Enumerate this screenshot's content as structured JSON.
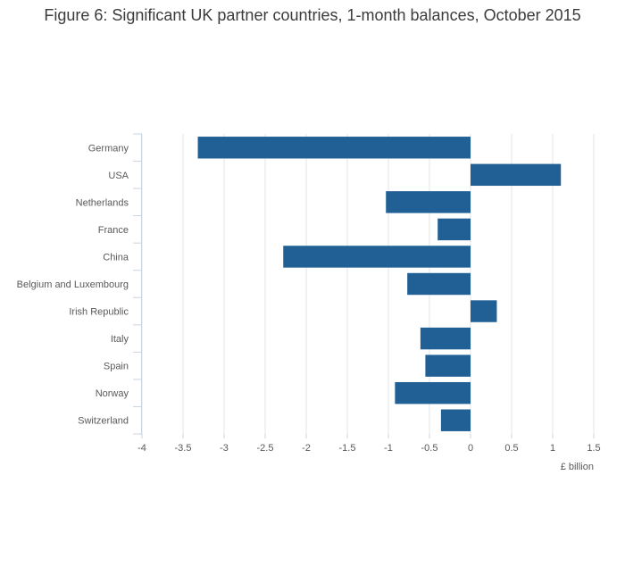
{
  "chart_data": {
    "type": "bar",
    "orientation": "horizontal",
    "title": "Figure 6: Significant UK partner countries, 1-month balances, October 2015",
    "xlabel": "£ billion",
    "ylabel": "",
    "categories": [
      "Germany",
      "USA",
      "Netherlands",
      "France",
      "China",
      "Belgium and Luxembourg",
      "Irish Republic",
      "Italy",
      "Spain",
      "Norway",
      "Switzerland"
    ],
    "values": [
      -3.32,
      1.1,
      -1.03,
      -0.4,
      -2.28,
      -0.77,
      0.32,
      -0.61,
      -0.55,
      -0.92,
      -0.36
    ],
    "xlim": [
      -4,
      1.5
    ],
    "xticks": [
      -4,
      -3.5,
      -3,
      -2.5,
      -2,
      -1.5,
      -1,
      -0.5,
      0,
      0.5,
      1,
      1.5
    ],
    "grid": true,
    "legend": "none",
    "bar_color": "#206095"
  }
}
